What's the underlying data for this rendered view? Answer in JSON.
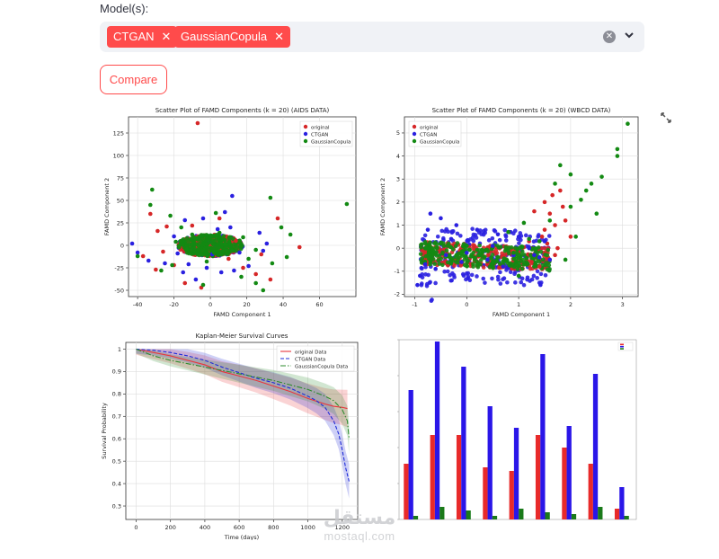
{
  "models": {
    "label": "Model(s):",
    "selected": [
      "CTGAN",
      "GaussianCopula"
    ]
  },
  "compare_label": "Compare",
  "colors": {
    "accent": "#ff4b4b",
    "original": "#d62728",
    "ctgan": "#2a20e0",
    "gaussian": "#138a13",
    "km_original": "#e8363d",
    "km_ctgan": "#1f2bd8",
    "km_gaussian": "#2e8b2e"
  },
  "watermark": {
    "arabic": "مستقل",
    "latin": "mostaql.com"
  },
  "chart_data": [
    {
      "type": "scatter",
      "title": "Scatter Plot of FAMD Components (k = 20) (AIDS DATA)",
      "xlabel": "FAMD Component 1",
      "ylabel": "FAMD Component 2",
      "xlim": [
        -45,
        80
      ],
      "ylim": [
        -57,
        143
      ],
      "xticks": [
        -40,
        -20,
        0,
        20,
        40,
        60
      ],
      "yticks": [
        -50,
        -25,
        0,
        25,
        50,
        75,
        100,
        125
      ],
      "legend": [
        "original",
        "CTGAN",
        "GaussianCopula"
      ],
      "legend_position": "top-right",
      "grid": true,
      "series": [
        {
          "name": "original",
          "points": [
            [
              -7,
              136
            ],
            [
              -33,
              35
            ],
            [
              -29,
              16
            ],
            [
              -24,
              21
            ],
            [
              -37,
              -12
            ],
            [
              -30,
              -27
            ],
            [
              -14,
              -42
            ],
            [
              10,
              -15
            ],
            [
              25,
              -32
            ],
            [
              33,
              -38
            ],
            [
              49,
              -2
            ],
            [
              -20,
              -22
            ],
            [
              -5,
              -47
            ],
            [
              18,
              -25
            ],
            [
              37,
              30
            ],
            [
              5,
              30
            ],
            [
              -10,
              22
            ],
            [
              -26,
              -7
            ],
            [
              14,
              5
            ],
            [
              28,
              -10
            ]
          ]
        },
        {
          "name": "CTGAN",
          "points": [
            [
              -43,
              2
            ],
            [
              -40,
              -8
            ],
            [
              -25,
              -20
            ],
            [
              -15,
              -30
            ],
            [
              -8,
              -38
            ],
            [
              -2,
              -25
            ],
            [
              6,
              -30
            ],
            [
              13,
              -28
            ],
            [
              21,
              -23
            ],
            [
              29,
              -6
            ],
            [
              12,
              55
            ],
            [
              8,
              37
            ],
            [
              -14,
              28
            ],
            [
              -20,
              10
            ],
            [
              -18,
              -9
            ],
            [
              4,
              18
            ],
            [
              11,
              20
            ],
            [
              16,
              -8
            ],
            [
              -4,
              30
            ],
            [
              1,
              -10
            ],
            [
              27,
              14
            ],
            [
              -34,
              -17
            ],
            [
              31,
              2
            ],
            [
              -12,
              -21
            ]
          ]
        },
        {
          "name": "GaussianCopula",
          "points": [
            [
              -32,
              62
            ],
            [
              -33,
              45
            ],
            [
              -40,
              -12
            ],
            [
              -22,
              33
            ],
            [
              -16,
              20
            ],
            [
              -10,
              12
            ],
            [
              39,
              20
            ],
            [
              44,
              12
            ],
            [
              75,
              46
            ],
            [
              33,
              53
            ],
            [
              25,
              -42
            ],
            [
              29,
              -50
            ],
            [
              34,
              -20
            ],
            [
              25,
              -5
            ],
            [
              42,
              -13
            ],
            [
              -27,
              -28
            ],
            [
              -21,
              -22
            ],
            [
              3,
              36
            ],
            [
              -4,
              -44
            ],
            [
              17,
              -35
            ],
            [
              2,
              -8
            ],
            [
              -8,
              8
            ],
            [
              8,
              2
            ],
            [
              12,
              -6
            ],
            [
              -13,
              -4
            ],
            [
              5,
              14
            ],
            [
              -2,
              -18
            ],
            [
              18,
              9
            ],
            [
              -19,
              4
            ],
            [
              21,
              -15
            ]
          ]
        }
      ]
    },
    {
      "type": "scatter",
      "title": "Scatter Plot of FAMD Components (k = 20) (WBCD DATA)",
      "xlabel": "FAMD Component 1",
      "ylabel": "FAMD Component 2",
      "xlim": [
        -1.2,
        3.3
      ],
      "ylim": [
        -2.1,
        5.7
      ],
      "xticks": [
        -1,
        0,
        1,
        2,
        3
      ],
      "yticks": [
        -2,
        -1,
        0,
        1,
        2,
        3,
        4,
        5
      ],
      "legend": [
        "original",
        "CTGAN",
        "GaussianCopula"
      ],
      "legend_position": "top-left",
      "grid": true,
      "series": [
        {
          "name": "original",
          "points": [
            [
              1.5,
              2.0
            ],
            [
              1.6,
              1.5
            ],
            [
              1.7,
              1.0
            ],
            [
              1.8,
              2.5
            ],
            [
              1.5,
              0.8
            ],
            [
              1.6,
              -0.5
            ],
            [
              1.4,
              -0.8
            ],
            [
              1.2,
              0.3
            ],
            [
              1.9,
              1.2
            ],
            [
              1.3,
              1.6
            ],
            [
              1.7,
              -0.3
            ],
            [
              2.0,
              0.5
            ],
            [
              1.55,
              0.2
            ],
            [
              1.45,
              0.5
            ],
            [
              1.65,
              2.3
            ],
            [
              1.85,
              1.8
            ],
            [
              1.25,
              -0.6
            ],
            [
              1.75,
              0.0
            ]
          ]
        },
        {
          "name": "CTGAN",
          "points": [
            [
              -0.95,
              -1.6
            ],
            [
              -0.9,
              -1.2
            ],
            [
              -0.8,
              -0.7
            ],
            [
              -0.7,
              1.5
            ],
            [
              -0.5,
              1.3
            ],
            [
              -0.2,
              1.0
            ],
            [
              0.2,
              0.8
            ],
            [
              0.6,
              0.6
            ],
            [
              1.0,
              0.5
            ],
            [
              1.3,
              -0.3
            ],
            [
              1.6,
              -0.5
            ],
            [
              1.4,
              -0.4
            ],
            [
              0.9,
              -0.3
            ],
            [
              0.4,
              -0.5
            ],
            [
              -0.1,
              -0.6
            ],
            [
              -0.6,
              -0.9
            ],
            [
              -0.3,
              0.4
            ],
            [
              0.0,
              -0.2
            ],
            [
              0.5,
              0.1
            ],
            [
              1.2,
              0.0
            ],
            [
              -0.75,
              0.8
            ],
            [
              -0.4,
              -0.3
            ],
            [
              0.7,
              -0.8
            ],
            [
              1.5,
              0.3
            ]
          ]
        },
        {
          "name": "GaussianCopula",
          "points": [
            [
              3.1,
              5.4
            ],
            [
              2.9,
              4.3
            ],
            [
              2.9,
              4.0
            ],
            [
              2.6,
              3.1
            ],
            [
              2.4,
              2.8
            ],
            [
              2.2,
              2.1
            ],
            [
              2.0,
              3.2
            ],
            [
              1.8,
              3.6
            ],
            [
              1.7,
              2.8
            ],
            [
              2.5,
              1.5
            ],
            [
              2.1,
              0.5
            ],
            [
              1.9,
              -0.5
            ],
            [
              1.3,
              -0.8
            ],
            [
              1.0,
              -1.2
            ],
            [
              0.5,
              -0.6
            ],
            [
              0.0,
              0.1
            ],
            [
              -0.5,
              0.2
            ],
            [
              -0.8,
              0.0
            ],
            [
              0.8,
              0.7
            ],
            [
              1.1,
              1.1
            ],
            [
              1.6,
              1.2
            ],
            [
              2.3,
              2.5
            ],
            [
              1.4,
              0.3
            ],
            [
              0.3,
              -0.2
            ],
            [
              -0.2,
              -0.3
            ],
            [
              0.9,
              -0.2
            ],
            [
              1.2,
              0.4
            ],
            [
              2.0,
              1.8
            ]
          ]
        }
      ]
    },
    {
      "type": "line",
      "title": "Kaplan-Meier Survival Curves",
      "xlabel": "Time (days)",
      "ylabel": "Survival Probability",
      "xlim": [
        -60,
        1290
      ],
      "ylim": [
        0.24,
        1.03
      ],
      "xticks": [
        0,
        200,
        400,
        600,
        800,
        1000,
        1200
      ],
      "yticks": [
        0.3,
        0.4,
        0.5,
        0.6,
        0.7,
        0.8,
        0.9,
        1.0
      ],
      "legend": [
        "original Data",
        "CTGAN Data",
        "GaussianCopula Data"
      ],
      "legend_position": "top-right",
      "grid": true,
      "series": [
        {
          "name": "original Data",
          "style": "solid",
          "x": [
            0,
            100,
            200,
            300,
            400,
            500,
            600,
            700,
            800,
            900,
            1000,
            1100,
            1150,
            1200,
            1230
          ],
          "y": [
            1.0,
            0.985,
            0.97,
            0.95,
            0.93,
            0.9,
            0.88,
            0.86,
            0.835,
            0.81,
            0.78,
            0.755,
            0.745,
            0.74,
            0.735
          ],
          "band": 0.025
        },
        {
          "name": "CTGAN Data",
          "style": "dashed",
          "x": [
            0,
            100,
            200,
            300,
            400,
            500,
            600,
            700,
            800,
            900,
            1000,
            1050,
            1100,
            1150,
            1180,
            1200,
            1220,
            1240
          ],
          "y": [
            1.0,
            0.995,
            0.985,
            0.97,
            0.95,
            0.92,
            0.895,
            0.87,
            0.85,
            0.825,
            0.79,
            0.77,
            0.74,
            0.68,
            0.62,
            0.55,
            0.47,
            0.41
          ],
          "band": 0.02
        },
        {
          "name": "GaussianCopula Data",
          "style": "dashdot",
          "x": [
            0,
            100,
            200,
            300,
            400,
            500,
            600,
            700,
            800,
            900,
            1000,
            1100,
            1150,
            1200,
            1230,
            1240
          ],
          "y": [
            1.0,
            0.97,
            0.95,
            0.935,
            0.92,
            0.905,
            0.89,
            0.875,
            0.86,
            0.84,
            0.82,
            0.79,
            0.77,
            0.73,
            0.68,
            0.6
          ],
          "band": 0.02
        }
      ]
    },
    {
      "type": "bar",
      "title": "",
      "xlabel": "",
      "ylabel": "",
      "categories": [
        "",
        "",
        "",
        "",
        "",
        "",
        "",
        "",
        ""
      ],
      "ylim": [
        0,
        1.0
      ],
      "legend_position": "top-right",
      "grid": false,
      "series": [
        {
          "name": "",
          "values": [
            0.31,
            0.47,
            0.47,
            0.29,
            0.27,
            0.47,
            0.4,
            0.31,
            0.06
          ]
        },
        {
          "name": "",
          "values": [
            0.72,
            0.99,
            0.85,
            0.63,
            0.51,
            0.92,
            0.52,
            0.81,
            0.18
          ]
        },
        {
          "name": "",
          "values": [
            0.02,
            0.07,
            0.05,
            0.02,
            0.06,
            0.04,
            0.03,
            0.07,
            0.02
          ]
        }
      ]
    }
  ]
}
